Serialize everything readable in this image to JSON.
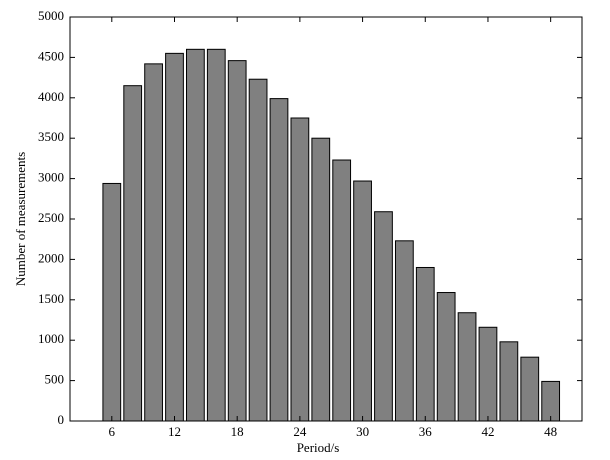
{
  "chart_data": {
    "type": "bar",
    "x": [
      6,
      8,
      10,
      12,
      14,
      16,
      18,
      20,
      22,
      24,
      26,
      28,
      30,
      32,
      34,
      36,
      38,
      40,
      42,
      44,
      46,
      48
    ],
    "values": [
      2940,
      4150,
      4420,
      4550,
      4600,
      4600,
      4460,
      4230,
      3990,
      3750,
      3500,
      3230,
      2970,
      2590,
      2230,
      1900,
      1590,
      1340,
      1160,
      980,
      790,
      490
    ],
    "color": "#808080",
    "xlabel": "Period/s",
    "ylabel": "Number of measurements",
    "xlim": [
      2,
      51
    ],
    "xticks": [
      6,
      12,
      18,
      24,
      30,
      36,
      42,
      48
    ],
    "ylim": [
      0,
      5000
    ],
    "yticks": [
      0,
      500,
      1000,
      1500,
      2000,
      2500,
      3000,
      3500,
      4000,
      4500,
      5000
    ]
  }
}
